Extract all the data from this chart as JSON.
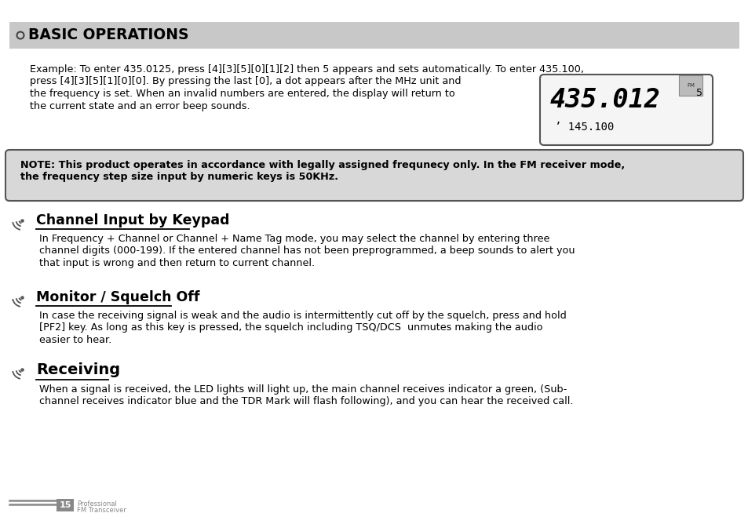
{
  "bg_color": "#ffffff",
  "header_bg": "#c8c8c8",
  "header_text": "BASIC OPERATIONS",
  "note_bg": "#d8d8d8",
  "note_border": "#555555",
  "page_num": "15",
  "page_label1": "Professional",
  "page_label2": "FM Transceiver",
  "para1_line1": "Example: To enter 435.0125, press [4][3][5][0][1][2] then 5 appears and sets automatically. To enter 435.100,",
  "para1_line2": "press [4][3][5][1][0][0]. By pressing the last [0], a dot appears after the MHz unit and",
  "para1_line3": "the frequency is set. When an invalid numbers are entered, the display will return to",
  "para1_line4": "the current state and an error beep sounds.",
  "note_line1": "NOTE: This product operates in accordance with legally assigned frequnecy only. In the FM receiver mode,",
  "note_line2": "the frequency step size input by numeric keys is 50KHz.",
  "display_line1": "435.012",
  "display_line1_sup": "5",
  "display_line2": "’ 145.100",
  "display_small_icon": "FM",
  "section1_title": "Channel Input by Keypad",
  "section1_body_line1": "In Frequency + Channel or Channel + Name Tag mode, you may select the channel by entering three",
  "section1_body_line2": "channel digits (000-199). If the entered channel has not been preprogrammed, a beep sounds to alert you",
  "section1_body_line3": "that input is wrong and then return to current channel.",
  "section2_title": "Monitor / Squelch Off",
  "section2_body_line1": "In case the receiving signal is weak and the audio is intermittently cut off by the squelch, press and hold",
  "section2_body_line2": "[PF2] key. As long as this key is pressed, the squelch including TSQ/DCS  unmutes making the audio",
  "section2_body_line3": "easier to hear.",
  "section3_title": "Receiving",
  "section3_body_line1": "When a signal is received, the LED lights will light up, the main channel receives indicator a green, (Sub-",
  "section3_body_line2": "channel receives indicator blue and the TDR Mark will flash following), and you can hear the received call.",
  "text_color": "#000000",
  "body_fontsize": 9.2,
  "title_fontsize": 12.5,
  "header_fontsize": 13.5
}
